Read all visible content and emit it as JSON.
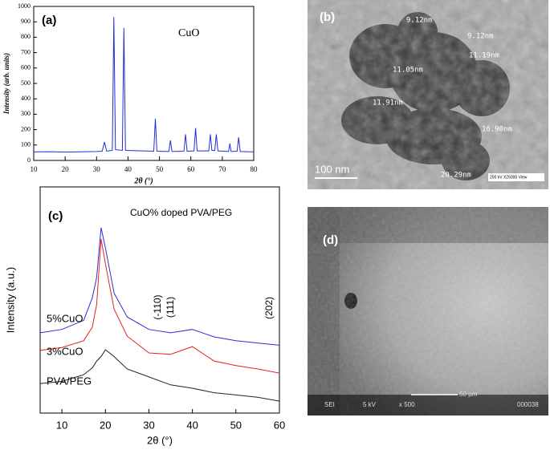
{
  "chart_data": [
    {
      "type": "line",
      "title": "(a)",
      "annotation": "CuO",
      "x_label": "2θ (°)",
      "y_label": "Intensity (arb. units)",
      "xlim": [
        10,
        80
      ],
      "xticks": [
        10,
        20,
        30,
        40,
        50,
        60,
        70,
        80
      ],
      "ylim": [
        0,
        1000
      ],
      "yticks": [
        0,
        100,
        200,
        300,
        400,
        500,
        600,
        700,
        800,
        900,
        1000
      ],
      "x": [
        10,
        15,
        20,
        25,
        30,
        31.8,
        32.5,
        33.2,
        35,
        35.5,
        36,
        38.2,
        38.7,
        39.2,
        48.2,
        48.7,
        49.2,
        53,
        53.5,
        54,
        57.8,
        58.3,
        58.8,
        61,
        61.5,
        62,
        65.7,
        66.2,
        66.7,
        67.6,
        68.1,
        68.6,
        72,
        72.4,
        72.8,
        74.7,
        75.2,
        75.7,
        80
      ],
      "series": [
        {
          "name": "CuO",
          "color": "#1f2fd6",
          "values": [
            55,
            57,
            54,
            56,
            58,
            60,
            120,
            60,
            65,
            930,
            70,
            65,
            860,
            65,
            60,
            270,
            60,
            58,
            130,
            58,
            60,
            170,
            60,
            62,
            210,
            62,
            62,
            170,
            65,
            65,
            170,
            62,
            58,
            110,
            58,
            60,
            150,
            58,
            55
          ]
        }
      ]
    },
    {
      "type": "line",
      "title": "(c)",
      "subtitle": "CuO% doped PVA/PEG",
      "x_label": "2θ (°)",
      "y_label": "Intensity (a.u.)",
      "annotations": [
        "(-110)",
        "(111)",
        "(202)"
      ],
      "xlim": [
        5,
        60
      ],
      "xticks": [
        10,
        20,
        30,
        40,
        50,
        60
      ],
      "ylim": [
        0,
        100
      ],
      "x": [
        5,
        10,
        15,
        17,
        18,
        19,
        20,
        22,
        25,
        30,
        35,
        40,
        45,
        50,
        55,
        60
      ],
      "series": [
        {
          "name": "5%CuO",
          "color": "#2b2bdf",
          "values": [
            35.5,
            37,
            41,
            51,
            60,
            82,
            73,
            53,
            42.5,
            37,
            35.5,
            37,
            33.7,
            32,
            31,
            30
          ]
        },
        {
          "name": "3%CuO",
          "color": "#e62020",
          "values": [
            27.7,
            29,
            32,
            38,
            48,
            77,
            66,
            46,
            34,
            26.6,
            26,
            29.4,
            23,
            21,
            19.5,
            17.7
          ]
        },
        {
          "name": "PVA/PEG",
          "color": "#222222",
          "values": [
            13,
            14,
            17,
            20,
            23,
            25,
            28,
            25,
            19.5,
            16,
            12.5,
            11,
            9,
            8,
            7,
            5.3
          ]
        }
      ]
    }
  ],
  "panels": {
    "b": {
      "title": "(b)",
      "labels": [
        "9.12nm",
        "9.12nm",
        "11.19nm",
        "11.05nm",
        "11.91nm",
        "16.90nm",
        "20.29nm"
      ],
      "scale_bar": "100 nm",
      "info": "200 kV  X25000  View"
    },
    "d": {
      "title": "(d)",
      "footer": [
        "SEI",
        "5 kV",
        "x 500",
        "50 µm",
        "000038"
      ]
    }
  }
}
